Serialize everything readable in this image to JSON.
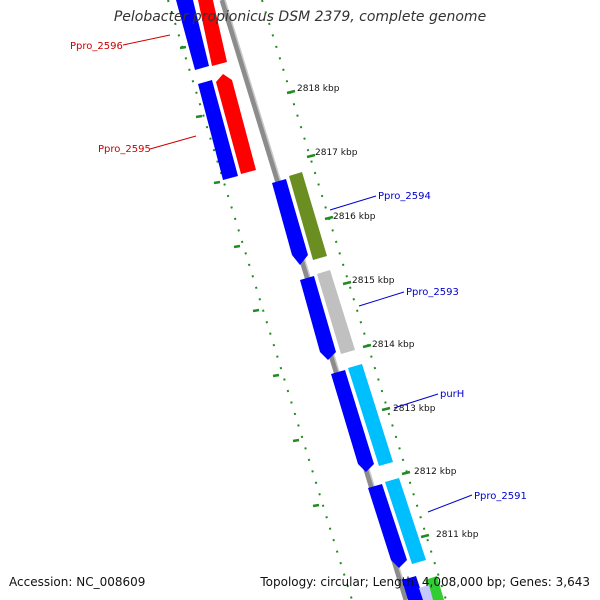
{
  "title": "Pelobacter propionicus DSM 2379, complete genome",
  "footer": {
    "accession": "Accession: NC_008609",
    "summary": "Topology: circular; Length: 4,008,000 bp; Genes: 3,643"
  },
  "ticks": [
    "2818 kbp",
    "2817 kbp",
    "2816 kbp",
    "2815 kbp",
    "2814 kbp",
    "2813 kbp",
    "2812 kbp",
    "2811 kbp"
  ],
  "genes": [
    {
      "name": "Ppro_2596",
      "color": "#ff0000",
      "label_color": "#cc0000"
    },
    {
      "name": "Ppro_2595",
      "color": "#ff0000",
      "label_color": "#cc0000"
    },
    {
      "name": "Ppro_2594",
      "color": "#6b8e23",
      "label_color": "#0000cc"
    },
    {
      "name": "Ppro_2593",
      "color": "#c0c0c0",
      "label_color": "#0000cc"
    },
    {
      "name": "purH",
      "color": "#00bfff",
      "label_color": "#0000cc"
    },
    {
      "name": "Ppro_2591",
      "color": "#00bfff",
      "label_color": "#0000cc"
    }
  ],
  "colors": {
    "cds": "#0000ff",
    "backbone": "#808080",
    "ruler": "#228b22"
  }
}
